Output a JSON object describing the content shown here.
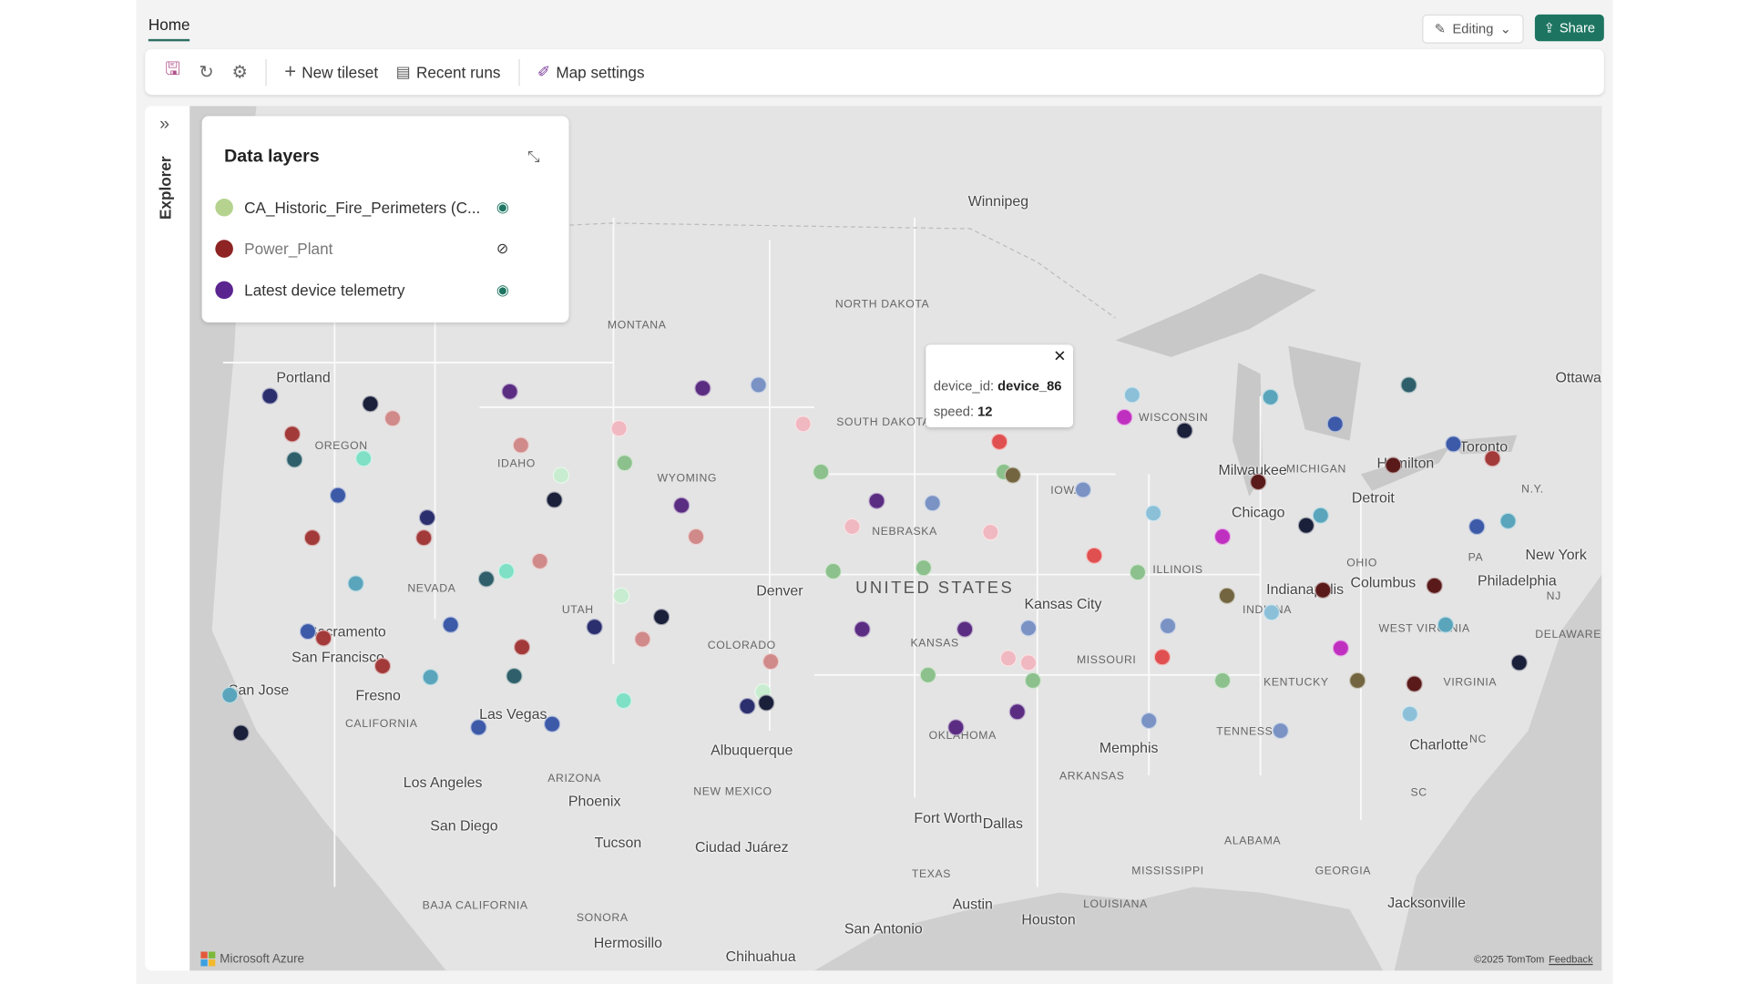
{
  "header": {
    "tab": "Home",
    "editing_label": "Editing",
    "share_label": "Share"
  },
  "toolbar": {
    "icons": [
      "save-icon",
      "refresh-icon",
      "settings-icon"
    ],
    "new_tileset": "New tileset",
    "recent_runs": "Recent runs",
    "map_settings": "Map settings"
  },
  "explorer": {
    "label": "Explorer"
  },
  "data_layers": {
    "title": "Data layers",
    "layers": [
      {
        "name": "CA_Historic_Fire_Perimeters (C...",
        "color": "#b5d38f",
        "visible": true
      },
      {
        "name": "Power_Plant",
        "color": "#8e2424",
        "visible": false
      },
      {
        "name": "Latest device telemetry",
        "color": "#5b2590",
        "visible": true
      }
    ]
  },
  "popup": {
    "key1": "device_id:",
    "val1": "device_86",
    "key2": "speed:",
    "val2": "12"
  },
  "map": {
    "cities": [
      "Winnipeg",
      "Portland",
      "Milwaukee",
      "Chicago",
      "Detroit",
      "Hamilton",
      "Toronto",
      "Ottawa",
      "New York",
      "Philadelphia",
      "Columbus",
      "Indianapolis",
      "Denver",
      "Sacramento",
      "San Francisco",
      "San Jose",
      "Fresno",
      "Las Vegas",
      "Kansas City",
      "Charlotte",
      "Memphis",
      "Los Angeles",
      "Phoenix",
      "Albuquerque",
      "San Diego",
      "Tucson",
      "Ciudad Juárez",
      "Fort Worth",
      "Dallas",
      "Austin",
      "Houston",
      "San Antonio",
      "Jacksonville",
      "Hermosillo",
      "Chihuahua"
    ],
    "regions": [
      "NORTH DAKOTA",
      "MONTANA",
      "SOUTH DAKOTA",
      "OREGON",
      "IDAHO",
      "WYOMING",
      "NEBRASKA",
      "IOWA",
      "WISCONSIN",
      "MICHIGAN",
      "N.Y.",
      "PA",
      "OHIO",
      "INDIANA",
      "ILLINOIS",
      "NEVADA",
      "UTAH",
      "CALIFORNIA",
      "COLORADO",
      "KANSAS",
      "MISSOURI",
      "KENTUCKY",
      "WEST VIRGINIA",
      "VIRGINIA",
      "DELAWARE",
      "NJ",
      "TENNESSEE",
      "NC",
      "SC",
      "OKLAHOMA",
      "ARKANSAS",
      "ARIZONA",
      "NEW MEXICO",
      "TEXAS",
      "MISSISSIPPI",
      "ALABAMA",
      "GEORGIA",
      "LOUISIANA",
      "BAJA CALIFORNIA",
      "SONORA"
    ],
    "country": "UNITED STATES",
    "palette": {
      "navy": "#2b2f6e",
      "darkred": "#a23a3a",
      "tealdark": "#2f5f6a",
      "mint": "#7fe0c5",
      "blue": "#3d5aa8",
      "pink": "#d08a8a",
      "purple": "#5b2d82",
      "steel": "#7a93c4",
      "green": "#8cc08c",
      "darknavy": "#1a1f3a",
      "lightteal": "#5aa5bb",
      "lightpink": "#f0b8c0",
      "olive": "#726540",
      "magenta": "#c030c0",
      "maroon": "#5a1a1a",
      "paleblue": "#8cc0d8",
      "red": "#e05050",
      "palegreen": "#c8ecd0"
    },
    "attribution_brand": "Microsoft Azure",
    "copyright": "©2025 TomTom",
    "feedback": "Feedback"
  }
}
